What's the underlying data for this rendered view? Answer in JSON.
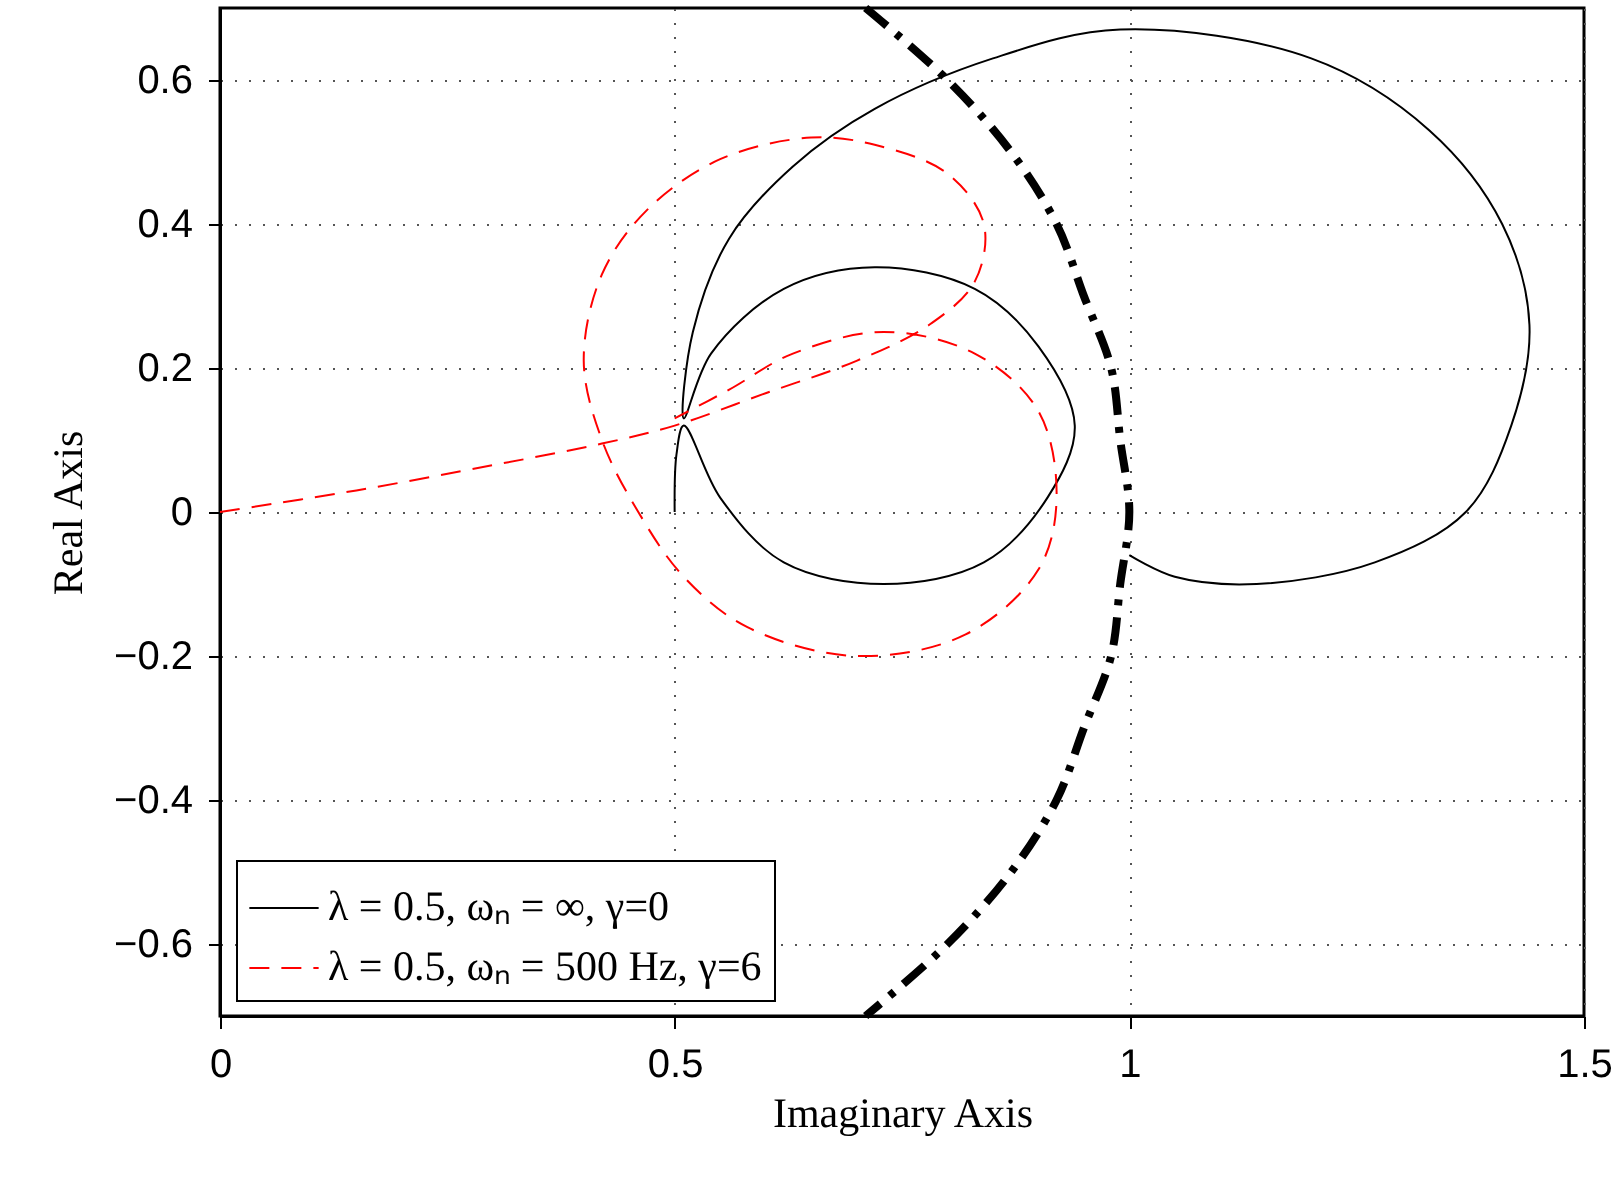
{
  "chart_data": {
    "type": "line",
    "xlabel": "Imaginary Axis",
    "ylabel": "Real Axis",
    "xlim": [
      0,
      1.5
    ],
    "xticks": [
      0,
      0.5,
      1,
      1.5
    ],
    "ylim": [
      -0.7,
      0.7
    ],
    "yticks": [
      -0.6,
      -0.4,
      -0.2,
      0,
      0.2,
      0.4,
      0.6
    ],
    "grid": true,
    "legend": "bottom left",
    "marker": "none",
    "series": [
      {
        "name": "λ = 0.5, ωₙ = ∞, γ=0",
        "color": "#000000",
        "line_style": "solid",
        "x": [
          0.5,
          0.502,
          0.51,
          0.55,
          0.62,
          0.73,
          0.84,
          0.91,
          0.94,
          0.9,
          0.83,
          0.72,
          0.62,
          0.54,
          0.51,
          0.52,
          0.56,
          0.63,
          0.72,
          0.85,
          0.99,
          1.2,
          1.33,
          1.41,
          1.44,
          1.42,
          1.37,
          1.27,
          1.14,
          1.05,
          1.0
        ],
        "values": [
          0,
          0.08,
          0.12,
          0.02,
          -0.07,
          -0.1,
          -0.07,
          0.02,
          0.12,
          0.23,
          0.31,
          0.34,
          0.31,
          0.22,
          0.13,
          0.25,
          0.38,
          0.48,
          0.56,
          0.63,
          0.67,
          0.63,
          0.53,
          0.4,
          0.26,
          0.12,
          0.0,
          -0.07,
          -0.1,
          -0.09,
          -0.06
        ]
      },
      {
        "name": "λ = 0.5, ωₙ = 500 Hz, γ=6",
        "color": "#ff0000",
        "line_style": "dashed",
        "x": [
          0,
          0.15,
          0.3,
          0.42,
          0.5,
          0.6,
          0.7,
          0.78,
          0.83,
          0.84,
          0.8,
          0.72,
          0.65,
          0.55,
          0.47,
          0.42,
          0.4,
          0.42,
          0.46,
          0.51,
          0.58,
          0.7,
          0.82,
          0.9,
          0.92,
          0.9,
          0.83,
          0.73,
          0.63,
          0.56,
          0.5
        ],
        "values": [
          0,
          0.03,
          0.065,
          0.095,
          0.12,
          0.165,
          0.21,
          0.26,
          0.32,
          0.4,
          0.47,
          0.51,
          0.52,
          0.49,
          0.42,
          0.33,
          0.21,
          0.1,
          0.0,
          -0.09,
          -0.16,
          -0.2,
          -0.17,
          -0.08,
          0.02,
          0.14,
          0.22,
          0.25,
          0.22,
          0.17,
          0.13
        ]
      },
      {
        "color": "#000000",
        "line_style": "dashdot",
        "x": [
          0.71,
          0.8,
          0.87,
          0.92,
          0.95,
          0.98,
          0.99,
          1.0,
          0.99,
          0.98,
          0.95,
          0.92,
          0.87,
          0.8,
          0.71
        ],
        "values": [
          0.7,
          0.6,
          0.5,
          0.4,
          0.3,
          0.2,
          0.1,
          0,
          -0.1,
          -0.2,
          -0.3,
          -0.4,
          -0.5,
          -0.6,
          -0.7
        ]
      }
    ]
  }
}
